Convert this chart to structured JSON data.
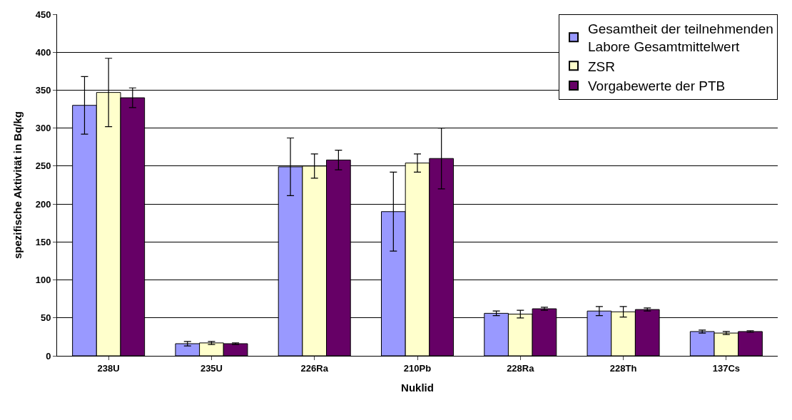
{
  "chart_data": {
    "type": "bar",
    "xlabel": "Nuklid",
    "ylabel": "spezifische Aktivität in Bq/kg",
    "categories": [
      "238U",
      "235U",
      "226Ra",
      "210Pb",
      "228Ra",
      "228Th",
      "137Cs"
    ],
    "series": [
      {
        "name": "Gesamtheit der teilnehmenden Labore Gesamtmittelwert",
        "color": "#9999ff",
        "values": [
          330,
          16,
          249,
          190,
          56,
          59,
          32
        ],
        "errors": [
          38,
          3,
          38,
          52,
          3,
          6,
          2
        ]
      },
      {
        "name": "ZSR",
        "color": "#ffffcc",
        "values": [
          347,
          17,
          250,
          254,
          55,
          58,
          30
        ],
        "errors": [
          45,
          2,
          16,
          12,
          5,
          7,
          2
        ]
      },
      {
        "name": "Vorgabewerte der PTB",
        "color": "#660066",
        "values": [
          340,
          16,
          258,
          260,
          62,
          61,
          32
        ],
        "errors": [
          13,
          1,
          13,
          40,
          2,
          2,
          1
        ]
      }
    ],
    "ylim": [
      0,
      450
    ],
    "yticks": [
      0,
      50,
      100,
      150,
      200,
      250,
      300,
      350,
      400,
      450
    ],
    "grid": "y",
    "legend": "top right"
  }
}
